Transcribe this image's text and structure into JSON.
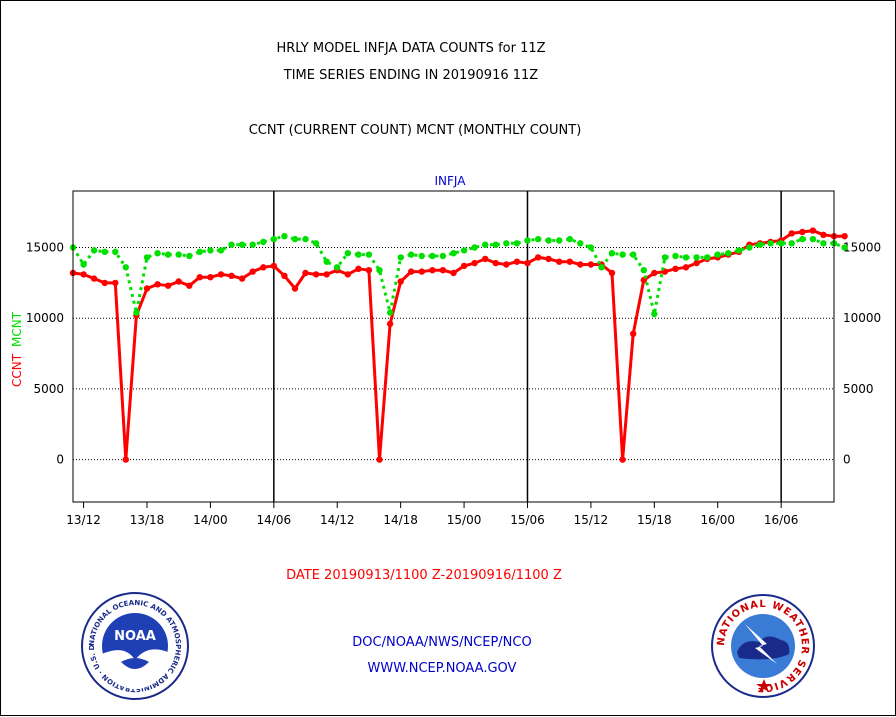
{
  "chart_data": {
    "type": "line",
    "title_lines": [
      "HRLY MODEL INFJA DATA COUNTS for 11Z",
      "TIME SERIES ENDING IN 20190916 11Z"
    ],
    "subtitle": "CCNT (CURRENT COUNT) MCNT (MONTHLY COUNT)",
    "station_label": "INFJA",
    "ylabel_left": "CCNT",
    "ylabel_right": "MCNT",
    "xlabel": "DATE 20190913/1100 Z-20190916/1100 Z",
    "x_ticks": [
      "13/12",
      "13/18",
      "14/00",
      "14/06",
      "14/12",
      "14/18",
      "15/00",
      "15/06",
      "15/12",
      "15/18",
      "16/00",
      "16/06"
    ],
    "y_ticks": [
      0,
      5000,
      10000,
      15000
    ],
    "y_ticks_right": [
      0,
      5000,
      10000,
      15000
    ],
    "ylim": [
      -3000,
      19000
    ],
    "x_start_hour": 11,
    "x_end_hour": 83,
    "grid": true,
    "series": [
      {
        "name": "CCNT",
        "color": "#ff0000",
        "values": [
          13200,
          13100,
          12800,
          12500,
          12500,
          0,
          10200,
          12100,
          12400,
          12300,
          12600,
          12300,
          12900,
          12900,
          13100,
          13000,
          12800,
          13300,
          13600,
          13700,
          13000,
          12100,
          13200,
          13100,
          13100,
          13400,
          13100,
          13500,
          13400,
          0,
          9600,
          12600,
          13300,
          13300,
          13400,
          13400,
          13200,
          13700,
          13900,
          14200,
          13900,
          13800,
          14000,
          13900,
          14300,
          14200,
          14000,
          14000,
          13800,
          13800,
          13800,
          13200,
          0,
          8900,
          12700,
          13200,
          13300,
          13500,
          13600,
          13900,
          14200,
          14300,
          14500,
          14700,
          15200,
          15300,
          15400,
          15500,
          16000,
          16100,
          16200,
          15900,
          15800,
          15800
        ]
      },
      {
        "name": "MCNT",
        "color": "#00e000",
        "values": [
          15000,
          13800,
          14800,
          14700,
          14700,
          13600,
          10400,
          14300,
          14600,
          14500,
          14500,
          14400,
          14700,
          14800,
          14800,
          15200,
          15200,
          15200,
          15400,
          15600,
          15800,
          15600,
          15600,
          15300,
          14000,
          13600,
          14600,
          14500,
          14500,
          13400,
          10400,
          14300,
          14500,
          14400,
          14400,
          14400,
          14600,
          14800,
          15000,
          15200,
          15200,
          15300,
          15300,
          15500,
          15600,
          15500,
          15500,
          15600,
          15300,
          15000,
          13600,
          14600,
          14500,
          14500,
          13400,
          10300,
          14300,
          14400,
          14300,
          14300,
          14300,
          14500,
          14600,
          14800,
          15000,
          15200,
          15300,
          15300,
          15300,
          15600,
          15600,
          15300,
          15300,
          15000
        ]
      }
    ]
  },
  "footer": {
    "agency_line": "DOC/NOAA/NWS/NCEP/NCO",
    "url": "WWW.NCEP.NOAA.GOV",
    "noaa_logo_text": "NOAA",
    "noaa_ring_text": "NATIONAL OCEANIC AND ATMOSPHERIC ADMINISTRATION · U.S. DEPARTMENT OF COMMERCE ·",
    "nws_ring_text": "NATIONAL WEATHER SERVICE",
    "colors": {
      "title": "#000000",
      "date_label": "#ff0000",
      "station_label": "#0000cc",
      "footer_text": "#0000cc"
    }
  }
}
